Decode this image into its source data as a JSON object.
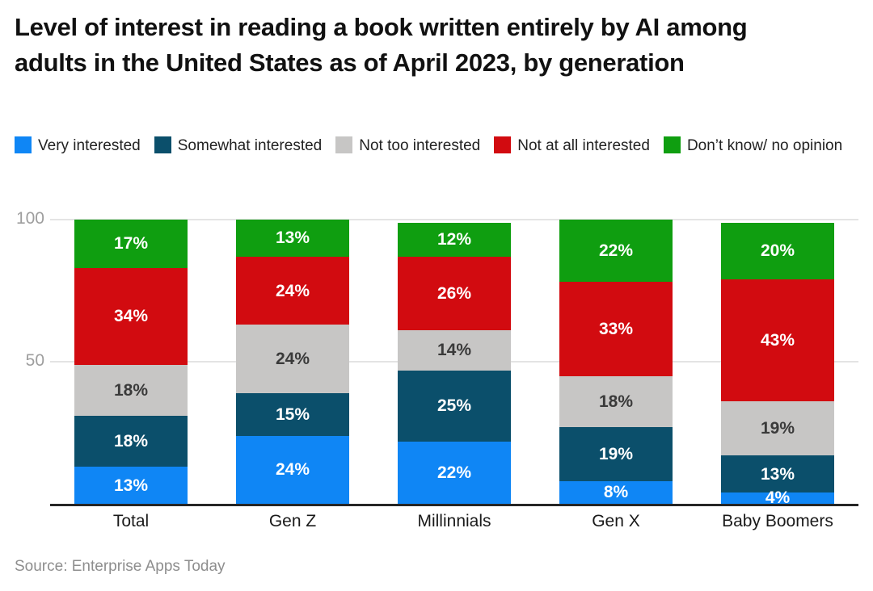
{
  "title": "Level of interest in reading a book written entirely by AI among adults in the United States as of April 2023, by generation",
  "source": "Source: Enterprise Apps Today",
  "y_axis": {
    "ticks": [
      {
        "label": "100",
        "value": 100
      },
      {
        "label": "50",
        "value": 50
      }
    ]
  },
  "chart_data": {
    "type": "bar",
    "stacked": true,
    "title": "Level of interest in reading a book written entirely by AI among adults in the United States as of April 2023, by generation",
    "xlabel": "",
    "ylabel": "",
    "ylim": [
      0,
      100
    ],
    "grid": true,
    "legend_position": "top",
    "value_suffix": "%",
    "categories": [
      "Total",
      "Gen Z",
      "Millinnials",
      "Gen X",
      "Baby Boomers"
    ],
    "series": [
      {
        "name": "Very interested",
        "color": "#0f86f5",
        "label_color": "#ffffff",
        "values": [
          13,
          24,
          22,
          8,
          4
        ]
      },
      {
        "name": "Somewhat interested",
        "color": "#0b4f6b",
        "label_color": "#ffffff",
        "values": [
          18,
          15,
          25,
          19,
          13
        ]
      },
      {
        "name": "Not too interested",
        "color": "#c7c6c5",
        "label_color": "#3a3a3a",
        "values": [
          18,
          24,
          14,
          18,
          19
        ]
      },
      {
        "name": "Not at all interested",
        "color": "#d20b10",
        "label_color": "#ffffff",
        "values": [
          34,
          24,
          26,
          33,
          43
        ]
      },
      {
        "name": "Don’t know/ no opinion",
        "color": "#0f9e10",
        "label_color": "#ffffff",
        "values": [
          17,
          13,
          12,
          22,
          20
        ]
      }
    ]
  }
}
